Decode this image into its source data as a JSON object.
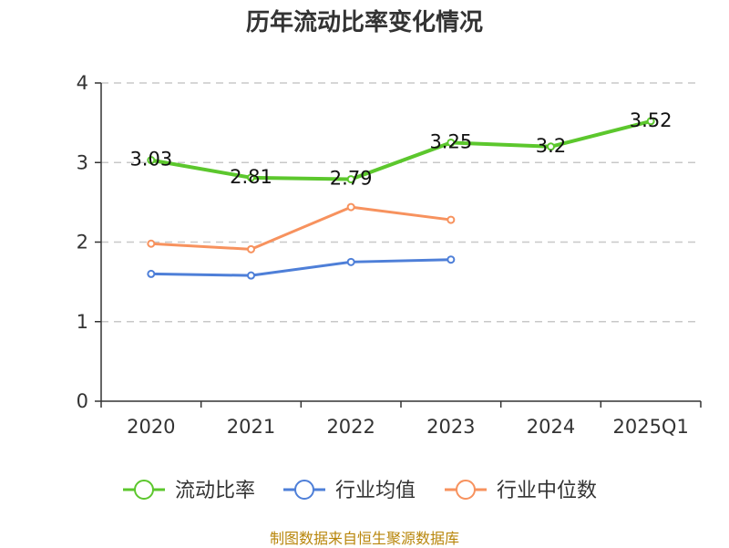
{
  "chart_data": {
    "type": "line",
    "title": "历年流动比率变化情况",
    "source": "制图数据来自恒生聚源数据库",
    "categories": [
      "2020",
      "2021",
      "2022",
      "2023",
      "2024",
      "2025Q1"
    ],
    "ylim": [
      0,
      4
    ],
    "yticks": [
      0,
      1,
      2,
      3,
      4
    ],
    "grid": true,
    "legend_position": "bottom",
    "series": [
      {
        "name": "流动比率",
        "color": "#5cc72d",
        "values": [
          3.03,
          2.81,
          2.79,
          3.25,
          3.2,
          3.52
        ],
        "labels": [
          "3.03",
          "2.81",
          "2.79",
          "3.25",
          "3.2",
          "3.52"
        ]
      },
      {
        "name": "行业均值",
        "color": "#4e7fd8",
        "values": [
          1.6,
          1.58,
          1.75,
          1.78,
          null,
          null
        ]
      },
      {
        "name": "行业中位数",
        "color": "#f7925e",
        "values": [
          1.98,
          1.91,
          2.44,
          2.28,
          null,
          null
        ]
      }
    ]
  }
}
